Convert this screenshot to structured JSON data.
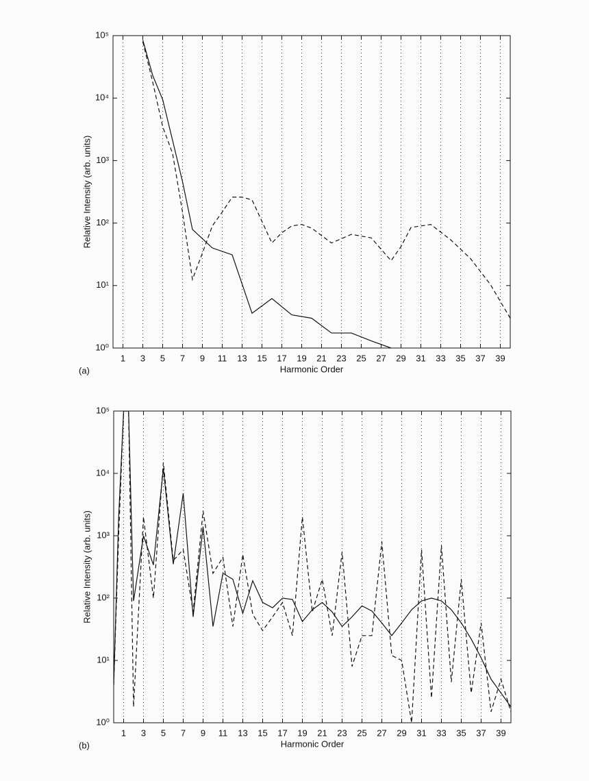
{
  "chart_data": [
    {
      "type": "line",
      "panel_label": "(a)",
      "xlabel": "Harmonic Order",
      "ylabel": "Relative Intensity (arb. units)",
      "log_y": true,
      "grid": true,
      "xlim": [
        0,
        40
      ],
      "xticks": [
        1,
        3,
        5,
        7,
        9,
        11,
        13,
        15,
        17,
        19,
        21,
        23,
        25,
        27,
        29,
        31,
        33,
        35,
        37,
        39
      ],
      "ylim": [
        1,
        100000
      ],
      "yticks": [
        {
          "value": 1,
          "label": "10⁰"
        },
        {
          "value": 10,
          "label": "10¹"
        },
        {
          "value": 100,
          "label": "10²"
        },
        {
          "value": 1000,
          "label": "10³"
        },
        {
          "value": 10000,
          "label": "10⁴"
        },
        {
          "value": 100000,
          "label": "10⁵"
        }
      ],
      "series": [
        {
          "color": "#111111",
          "style": "solid",
          "x": [
            3,
            4,
            5,
            6,
            7,
            8,
            10,
            12,
            14,
            16,
            18,
            20,
            22,
            24,
            26,
            28
          ],
          "values": [
            85000,
            23000,
            9500,
            2100,
            460,
            79,
            40,
            31,
            3.6,
            6.2,
            3.4,
            3.0,
            1.74,
            1.74,
            1.3,
            1.0
          ]
        },
        {
          "color": "#111111",
          "style": "dashed",
          "x": [
            3,
            4,
            5,
            6,
            7,
            8,
            9,
            10,
            11,
            12,
            13,
            14,
            16,
            17,
            18,
            19,
            20,
            22,
            24,
            26,
            28,
            29,
            30,
            32,
            34,
            36,
            38,
            40
          ],
          "values": [
            80000,
            18000,
            3500,
            1300,
            150,
            12.5,
            33,
            90,
            150,
            260,
            260,
            235,
            48,
            70,
            90,
            95,
            83,
            48,
            66,
            58,
            25,
            42,
            85,
            95,
            54,
            27,
            10.4,
            3.0
          ]
        }
      ]
    },
    {
      "type": "line",
      "panel_label": "(b)",
      "xlabel": "Harmonic Order",
      "ylabel": "Relative Intensity (arb. units)",
      "log_y": true,
      "grid": true,
      "xlim": [
        0,
        40
      ],
      "xticks": [
        1,
        3,
        5,
        7,
        9,
        11,
        13,
        15,
        17,
        19,
        21,
        23,
        25,
        27,
        29,
        31,
        33,
        35,
        37,
        39
      ],
      "ylim": [
        1,
        100000
      ],
      "yticks": [
        {
          "value": 1,
          "label": "10⁰"
        },
        {
          "value": 10,
          "label": "10¹"
        },
        {
          "value": 100,
          "label": "10²"
        },
        {
          "value": 1000,
          "label": "10³"
        },
        {
          "value": 10000,
          "label": "10⁴"
        },
        {
          "value": 100000,
          "label": "10⁵"
        }
      ],
      "series": [
        {
          "color": "#111111",
          "style": "solid",
          "x": [
            0,
            0.5,
            1,
            1.5,
            2,
            3,
            4,
            5,
            6,
            7,
            8,
            9,
            10,
            11,
            12,
            13,
            14,
            15,
            16,
            17,
            18,
            19,
            20,
            21,
            22,
            23,
            24,
            25,
            26,
            27,
            28,
            29,
            30,
            31,
            32,
            33,
            34,
            35,
            36,
            37,
            38,
            39,
            40
          ],
          "values": [
            4,
            2000,
            100000,
            100000,
            90,
            1000,
            340,
            12000,
            350,
            4800,
            50,
            1400,
            35,
            250,
            200,
            57,
            190,
            85,
            70,
            100,
            95,
            42,
            65,
            85,
            60,
            35,
            50,
            75,
            62,
            40,
            25,
            40,
            65,
            90,
            100,
            90,
            65,
            40,
            22,
            11,
            5,
            3,
            1.8
          ]
        },
        {
          "color": "#111111",
          "style": "dashed",
          "x": [
            0,
            0.5,
            1,
            1.5,
            2,
            3,
            4,
            5,
            6,
            7,
            8,
            9,
            10,
            11,
            12,
            13,
            14,
            15,
            16,
            17,
            18,
            19,
            20,
            21,
            22,
            23,
            24,
            25,
            26,
            27,
            28,
            29,
            30,
            31,
            32,
            33,
            34,
            35,
            36,
            37,
            38,
            39,
            40
          ],
          "values": [
            4,
            1000,
            100000,
            100000,
            1.8,
            2000,
            100,
            15000,
            400,
            600,
            60,
            2500,
            250,
            450,
            35,
            500,
            55,
            30,
            50,
            85,
            25,
            2000,
            60,
            200,
            25,
            550,
            8,
            25,
            25,
            800,
            12,
            10,
            1,
            600,
            2.5,
            700,
            4.5,
            200,
            3,
            40,
            1.5,
            5,
            1.5
          ]
        }
      ]
    }
  ]
}
